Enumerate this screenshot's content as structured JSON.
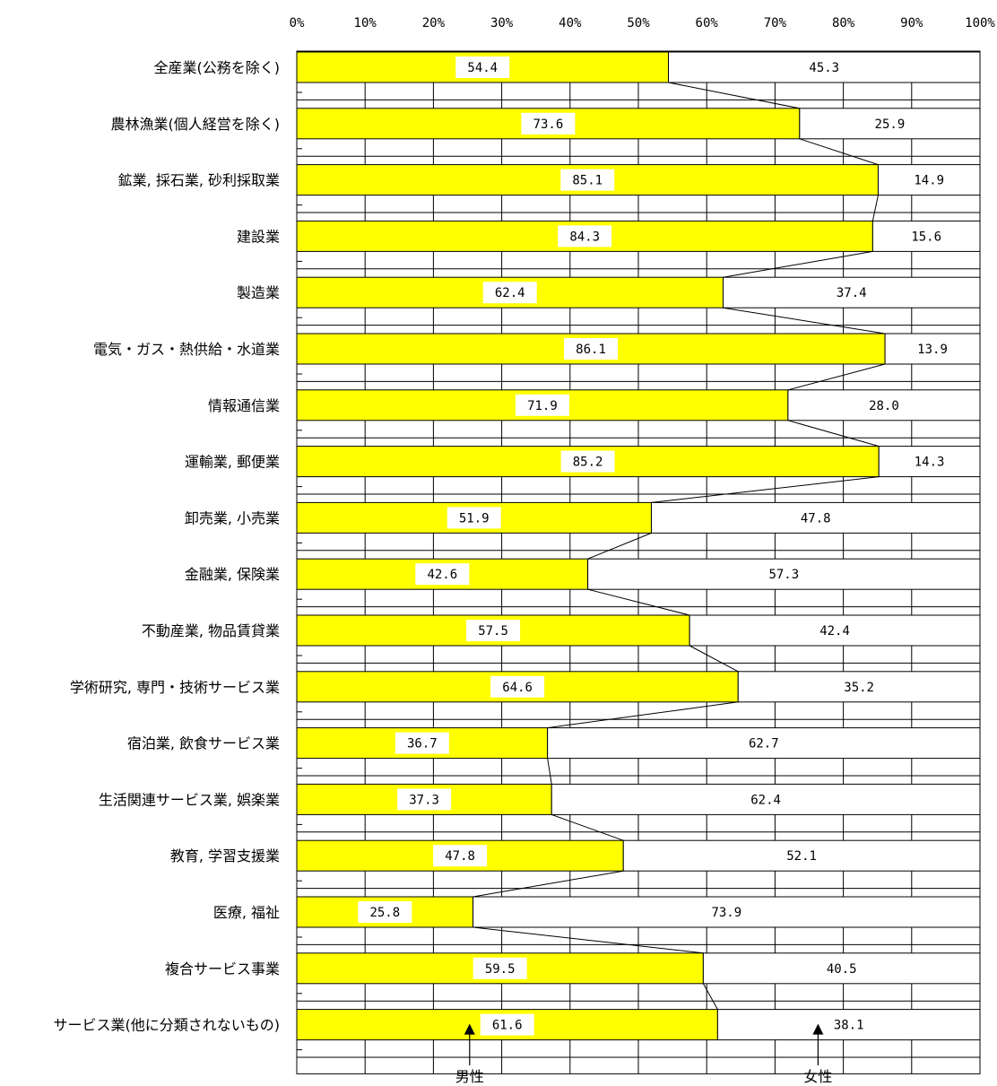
{
  "chart_data": {
    "type": "bar",
    "stacked": true,
    "orientation": "horizontal",
    "xlim": [
      0,
      100
    ],
    "x_ticks": [
      "0%",
      "10%",
      "20%",
      "30%",
      "40%",
      "50%",
      "60%",
      "70%",
      "80%",
      "90%",
      "100%"
    ],
    "grid": true,
    "categories": [
      "全産業(公務を除く)",
      "農林漁業(個人経営を除く)",
      "鉱業, 採石業, 砂利採取業",
      "建設業",
      "製造業",
      "電気・ガス・熱供給・水道業",
      "情報通信業",
      "運輸業, 郵便業",
      "卸売業, 小売業",
      "金融業, 保険業",
      "不動産業, 物品賃貸業",
      "学術研究, 専門・技術サービス業",
      "宿泊業, 飲食サービス業",
      "生活関連サービス業, 娯楽業",
      "教育, 学習支援業",
      "医療, 福祉",
      "複合サービス事業",
      "サービス業(他に分類されないもの)"
    ],
    "series": [
      {
        "name": "男性",
        "color": "#ffff00",
        "values": [
          54.4,
          73.6,
          85.1,
          84.3,
          62.4,
          86.1,
          71.9,
          85.2,
          51.9,
          42.6,
          57.5,
          64.6,
          36.7,
          37.3,
          47.8,
          25.8,
          59.5,
          61.6
        ],
        "labels": [
          "54.4",
          "73.6",
          "85.1",
          "84.3",
          "62.4",
          "86.1",
          "71.9",
          "85.2",
          "51.9",
          "42.6",
          "57.5",
          "64.6",
          "36.7",
          "37.3",
          "47.8",
          "25.8",
          "59.5",
          "61.6"
        ]
      },
      {
        "name": "女性",
        "color": "#ffffff",
        "values": [
          45.3,
          25.9,
          14.9,
          15.6,
          37.4,
          13.9,
          28.0,
          14.3,
          47.8,
          57.3,
          42.4,
          35.2,
          62.7,
          62.4,
          52.1,
          73.9,
          40.5,
          38.1
        ],
        "labels": [
          "45.3",
          "25.9",
          "14.9",
          "15.6",
          "37.4",
          "13.9",
          "28.0",
          "14.3",
          "47.8",
          "57.3",
          "42.4",
          "35.2",
          "62.7",
          "62.4",
          "52.1",
          "73.9",
          "40.5",
          "38.1"
        ]
      }
    ],
    "legend": "bottom",
    "series_lines": true
  }
}
